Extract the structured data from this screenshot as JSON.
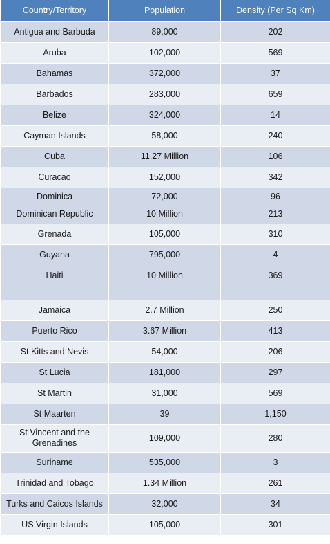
{
  "header": {
    "col1": "Country/Territory",
    "col2": "Population",
    "col3": "Density (Per Sq Km)"
  },
  "rows": [
    {
      "country": "Antigua and Barbuda",
      "population": "89,000",
      "density": "202"
    },
    {
      "country": "Aruba",
      "population": "102,000",
      "density": "569"
    },
    {
      "country": "Bahamas",
      "population": "372,000",
      "density": "37"
    },
    {
      "country": "Barbados",
      "population": "283,000",
      "density": "659"
    },
    {
      "country": "Belize",
      "population": "324,000",
      "density": "14"
    },
    {
      "country": "Cayman Islands",
      "population": "58,000",
      "density": "240"
    },
    {
      "country": "Cuba",
      "population": "11.27 Million",
      "density": "106"
    },
    {
      "country": "Curacao",
      "population": "152,000",
      "density": "342"
    },
    {
      "country": "Dominica",
      "population": "72,000",
      "density": "96"
    },
    {
      "country": "Dominican Republic",
      "population": "10 Million",
      "density": "213"
    },
    {
      "country": "Grenada",
      "population": "105,000",
      "density": "310"
    },
    {
      "country": "Guyana",
      "population": "795,000",
      "density": "4"
    },
    {
      "country": "Haiti",
      "population": "10 Million",
      "density": "369"
    },
    {
      "country": "Jamaica",
      "population": "2.7 Million",
      "density": "250"
    },
    {
      "country": "Puerto Rico",
      "population": "3.67 Million",
      "density": "413"
    },
    {
      "country": "St Kitts and Nevis",
      "population": "54,000",
      "density": "206"
    },
    {
      "country": "St Lucia",
      "population": "181,000",
      "density": "297"
    },
    {
      "country": "St Martin",
      "population": "31,000",
      "density": "569"
    },
    {
      "country": "St Maarten",
      "population": "39",
      "density": "1,150"
    },
    {
      "country": "St Vincent and the Grenadines",
      "population": "109,000",
      "density": "280"
    },
    {
      "country": "Suriname",
      "population": "535,000",
      "density": "3"
    },
    {
      "country": "Trinidad and Tobago",
      "population": "1.34 Million",
      "density": "261"
    },
    {
      "country": "Turks and Caicos Islands",
      "population": "32,000",
      "density": "34"
    },
    {
      "country": "US Virgin Islands",
      "population": "105,000",
      "density": "301"
    }
  ]
}
